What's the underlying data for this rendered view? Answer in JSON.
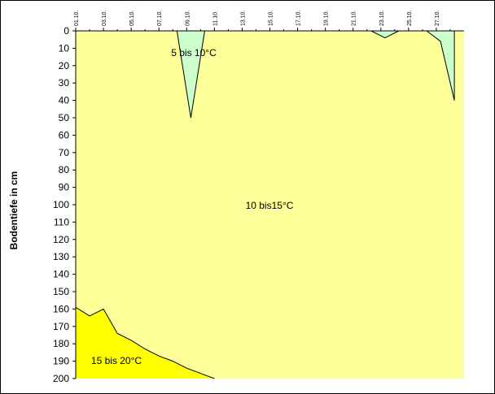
{
  "chart_data": {
    "type": "area",
    "ylabel": "Bodentiefe in cm",
    "ylim": [
      0,
      200
    ],
    "y_inverted": true,
    "y_ticks": [
      0,
      10,
      20,
      30,
      40,
      50,
      60,
      70,
      80,
      90,
      100,
      110,
      120,
      130,
      140,
      150,
      160,
      170,
      180,
      190,
      200
    ],
    "x_ticks": [
      "01.10.",
      "03.10.",
      "05.10.",
      "07.10.",
      "09.10.",
      "11.10.",
      "13.10.",
      "15.10.",
      "17.10.",
      "19.10.",
      "21.10.",
      "23.10.",
      "25.10.",
      "27.10."
    ],
    "x_days": [
      1,
      29
    ],
    "grid": false,
    "colors": {
      "plot_background": "#FFFF99",
      "cool_zone": "#CCFFCC",
      "warm_zone": "#FFFF00",
      "outline": "#000000"
    },
    "zones": [
      {
        "label": "5 bis 10°C",
        "band": "5-10",
        "color": "#CCFFCC",
        "boundaries": [
          {
            "days": [
              8.3,
              9.3,
              10.3
            ],
            "depth_cm": [
              0,
              50,
              0
            ]
          },
          {
            "days": [
              22.3,
              23.3,
              24.3
            ],
            "depth_cm": [
              0,
              4,
              0
            ]
          },
          {
            "days": [
              26.3,
              27.3,
              28.3
            ],
            "depth_cm": [
              0,
              6,
              40
            ]
          }
        ]
      },
      {
        "label": "10 bis15°C",
        "band": "10-15",
        "color": "#FFFF99"
      },
      {
        "label": "15 bis 20°C",
        "band": "15-20",
        "color": "#FFFF00",
        "boundary": {
          "days": [
            1,
            2,
            3,
            4,
            5,
            6,
            7,
            8,
            9,
            10,
            11
          ],
          "depth_cm": [
            159,
            164,
            160,
            174,
            178,
            183,
            187,
            190,
            194,
            197,
            200
          ]
        }
      }
    ]
  }
}
